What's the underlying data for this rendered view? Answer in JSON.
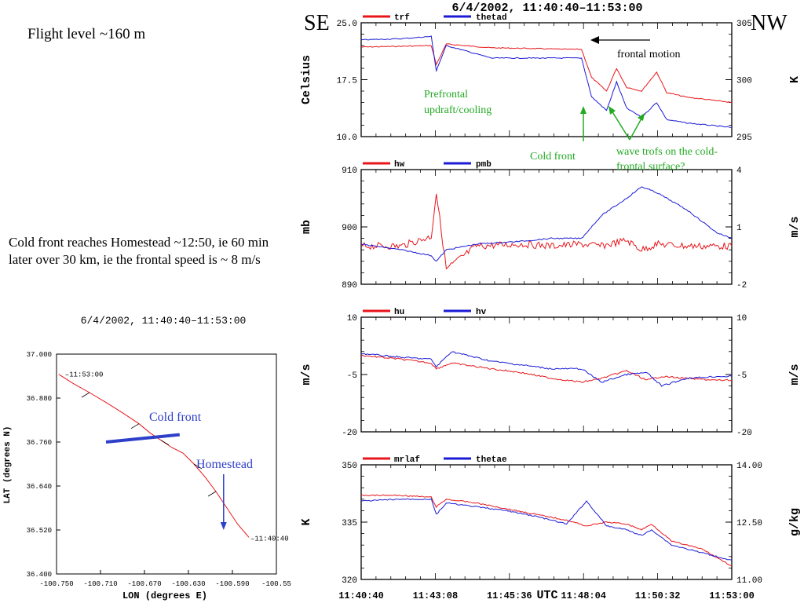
{
  "left_text": {
    "flight_level": "Flight level ~160 m",
    "note": "Cold front reaches Homestead ~12:50, ie 60 min later over 30 km, ie the frontal speed is ~ 8 m/s"
  },
  "header": {
    "title": "6/4/2002, 11:40:40–11:53:00",
    "se": "SE",
    "nw": "NW"
  },
  "annotations": {
    "frontal_motion": "frontal motion",
    "prefrontal": "Prefrontal updraft/cooling",
    "prefrontal_line1": "Prefrontal",
    "prefrontal_line2": "updraft/cooling",
    "cold_front": "Cold front",
    "wave_line1": "wave trofs on the cold-",
    "wave_line2": "frontal surface?"
  },
  "colors": {
    "series1": "#e8161b",
    "series2": "#1b1bd6",
    "annot_green": "#22aa22",
    "map_line": "#e8161b",
    "front_blue": "#2e3fc9"
  },
  "x_axis": {
    "label": "UTC",
    "ticks": [
      "11:40:40",
      "11:43:08",
      "11:45:36",
      "11:48:04",
      "11:50:32",
      "11:53:00"
    ]
  },
  "chart_data": [
    {
      "type": "line",
      "legend": [
        "trf",
        "thetad"
      ],
      "ylabel_left": "Celsius",
      "ylabel_right": "K",
      "yticks_left": [
        "25.0",
        "17.5",
        "10.0"
      ],
      "yticks_right": [
        "305",
        "300",
        "295"
      ],
      "ylim_left": [
        10,
        25
      ],
      "ylim_right": [
        295,
        305
      ],
      "x": [
        "11:40:40",
        "11:42:00",
        "11:43:00",
        "11:43:10",
        "11:43:30",
        "11:45:00",
        "11:46:30",
        "11:47:30",
        "11:48:00",
        "11:48:20",
        "11:48:50",
        "11:49:10",
        "11:49:30",
        "11:50:00",
        "11:50:30",
        "11:50:50",
        "11:51:30",
        "11:53:00"
      ],
      "series": [
        {
          "name": "trf",
          "values": [
            21.8,
            21.9,
            22.0,
            19.5,
            22.2,
            21.7,
            21.6,
            21.5,
            21.5,
            17.8,
            16.0,
            19.0,
            16.5,
            16.0,
            18.5,
            15.8,
            15.2,
            14.5
          ]
        },
        {
          "name": "thetad",
          "values": [
            303.5,
            303.6,
            303.8,
            300.8,
            303.0,
            301.9,
            301.9,
            301.9,
            301.9,
            298.5,
            297.3,
            299.8,
            297.5,
            296.7,
            298.0,
            296.5,
            296.2,
            295.8
          ]
        }
      ]
    },
    {
      "type": "line",
      "legend": [
        "hw",
        "pmb"
      ],
      "ylabel_left": "mb",
      "ylabel_right": "m/s",
      "yticks_left": [
        "910",
        "900",
        "890"
      ],
      "yticks_right": [
        "4",
        "1",
        "-2"
      ],
      "ylim_left": [
        890,
        910
      ],
      "ylim_right": [
        -2,
        4
      ],
      "x": [
        "11:40:40",
        "11:42:00",
        "11:43:00",
        "11:43:10",
        "11:43:30",
        "11:44:30",
        "11:46:00",
        "11:47:00",
        "11:48:00",
        "11:48:40",
        "11:49:30",
        "11:50:00",
        "11:50:30",
        "11:51:30",
        "11:52:30",
        "11:53:00"
      ],
      "series": [
        {
          "name": "hw",
          "values": [
            0.0,
            0.0,
            0.5,
            2.8,
            -1.2,
            0.0,
            0.1,
            0.0,
            0.1,
            0.0,
            0.3,
            -0.2,
            0.1,
            0.0,
            0.0,
            0.0
          ]
        },
        {
          "name": "pmb",
          "values": [
            897,
            896,
            895,
            894,
            896,
            897,
            897.5,
            898,
            898,
            902,
            905,
            907,
            906,
            903,
            899,
            898
          ]
        }
      ]
    },
    {
      "type": "line",
      "legend": [
        "hu",
        "hv"
      ],
      "ylabel_left": "m/s",
      "ylabel_right": "m/s",
      "yticks_left": [
        "10",
        "-5",
        "-20"
      ],
      "yticks_right": [
        "10",
        "-5",
        "-20"
      ],
      "ylim_left": [
        -20,
        10
      ],
      "ylim_right": [
        -20,
        10
      ],
      "x": [
        "11:40:40",
        "11:42:00",
        "11:43:00",
        "11:43:10",
        "11:43:40",
        "11:45:00",
        "11:46:00",
        "11:47:00",
        "11:48:00",
        "11:48:40",
        "11:49:30",
        "11:50:10",
        "11:50:40",
        "11:51:30",
        "11:52:30",
        "11:53:00"
      ],
      "series": [
        {
          "name": "hu",
          "values": [
            0.0,
            -1.0,
            -2.0,
            -3.5,
            -2.0,
            -3.5,
            -4.5,
            -6.0,
            -7.0,
            -6.0,
            -4.0,
            -6.5,
            -5.5,
            -6.0,
            -6.5,
            -6.5
          ]
        },
        {
          "name": "hv",
          "values": [
            0.5,
            -0.5,
            -1.0,
            -3.0,
            1.0,
            -1.5,
            -2.5,
            -3.5,
            -3.5,
            -7.0,
            -5.0,
            -4.5,
            -8.0,
            -6.0,
            -5.5,
            -5.5
          ]
        }
      ]
    },
    {
      "type": "line",
      "legend": [
        "mrlaf",
        "thetae"
      ],
      "ylabel_left": "K",
      "ylabel_right": "g/kg",
      "yticks_left": [
        "350",
        "335",
        "320"
      ],
      "yticks_right": [
        "14.00",
        "12.50",
        "11.00"
      ],
      "ylim_left": [
        320,
        350
      ],
      "ylim_right": [
        11,
        14
      ],
      "x": [
        "11:40:40",
        "11:42:00",
        "11:43:00",
        "11:43:10",
        "11:43:30",
        "11:44:30",
        "11:45:30",
        "11:46:30",
        "11:47:30",
        "11:48:10",
        "11:48:50",
        "11:49:30",
        "11:50:00",
        "11:50:20",
        "11:51:00",
        "11:52:00",
        "11:53:00"
      ],
      "series": [
        {
          "name": "mrlaf",
          "values": [
            13.2,
            13.2,
            13.15,
            12.9,
            13.1,
            13.0,
            12.85,
            12.7,
            12.55,
            12.4,
            12.5,
            12.45,
            12.3,
            12.45,
            12.0,
            11.8,
            11.35
          ]
        },
        {
          "name": "thetae",
          "values": [
            340.5,
            341.0,
            341.0,
            337.0,
            340.0,
            339.0,
            338.0,
            336.5,
            334.5,
            340.5,
            334.0,
            333.0,
            331.5,
            333.0,
            329.0,
            327.0,
            325.0
          ]
        }
      ]
    },
    {
      "type": "line",
      "title": "6/4/2002, 11:40:40–11:53:00",
      "xlabel": "LON (degrees E)",
      "ylabel": "LAT (degrees N)",
      "xticks": [
        "-100.750",
        "-100.710",
        "-100.670",
        "-100.630",
        "-100.590",
        "-100.55"
      ],
      "yticks": [
        "37.000",
        "36.880",
        "36.760",
        "36.640",
        "36.520",
        "36.400"
      ],
      "xlim": [
        -100.75,
        -100.55
      ],
      "ylim": [
        36.4,
        37.0
      ],
      "track_lon": [
        -100.748,
        -100.735,
        -100.72,
        -100.705,
        -100.69,
        -100.675,
        -100.665,
        -100.655,
        -100.645,
        -100.635,
        -100.625,
        -100.615,
        -100.605,
        -100.595,
        -100.585,
        -100.575
      ],
      "track_lat": [
        36.945,
        36.92,
        36.895,
        36.868,
        36.84,
        36.81,
        36.785,
        36.765,
        36.745,
        36.73,
        36.7,
        36.665,
        36.625,
        36.58,
        36.535,
        36.5
      ],
      "start_label": "11:53:00",
      "end_label": "11:40:40",
      "cold_front_lon": [
        -100.705,
        -100.638
      ],
      "cold_front_lat": [
        36.76,
        36.78
      ],
      "homestead_lon": -100.598,
      "homestead_lat": 36.52,
      "cold_front_label": "Cold front",
      "homestead_label": "Homestead"
    }
  ]
}
